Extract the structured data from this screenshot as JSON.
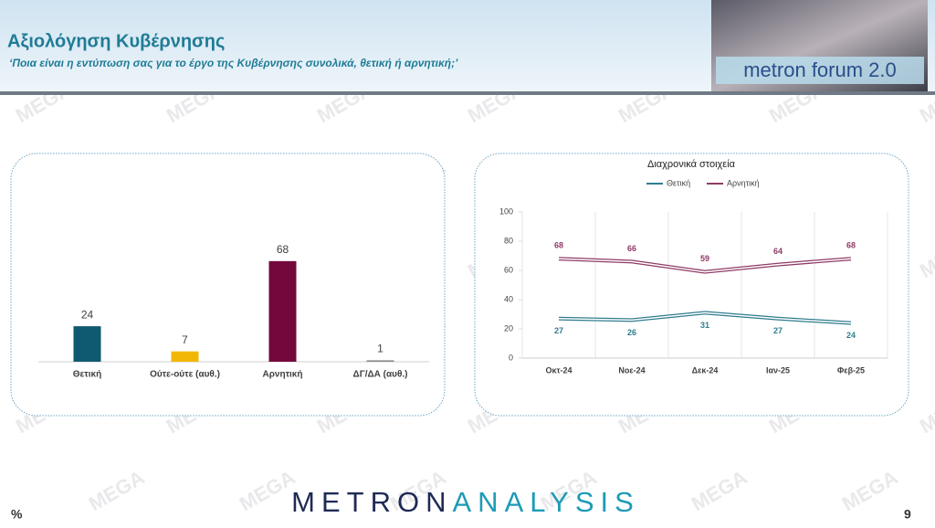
{
  "header": {
    "title": "Αξιολόγηση Κυβέρνησης",
    "subtitle": "‘Ποια είναι η εντύπωση σας για το έργο της Κυβέρνησης συνολικά, θετική ή αρνητική;’",
    "logo_text": "metron forum 2.0"
  },
  "watermark": "MEGA",
  "footer": {
    "unit": "%",
    "brand_first": "METRON",
    "brand_second": "ANALYSIS",
    "page_number": "9"
  },
  "chart_data": [
    {
      "type": "bar",
      "categories": [
        "Θετική",
        "Ούτε-ούτε (αυθ.)",
        "Αρνητική",
        "ΔΓ/ΔΑ (αυθ.)"
      ],
      "values": [
        24,
        7,
        68,
        1
      ],
      "colors": [
        "#0f5a70",
        "#f2b705",
        "#73083c",
        "#8c8c8c"
      ]
    },
    {
      "type": "line",
      "title": "Διαχρονικά στοιχεία",
      "categories": [
        "Οκτ-24",
        "Νοε-24",
        "Δεκ-24",
        "Ιαν-25",
        "Φεβ-25"
      ],
      "series": [
        {
          "name": "Θετική",
          "color": "#2f7d8e",
          "values": [
            27,
            26,
            31,
            27,
            24
          ]
        },
        {
          "name": "Αρνητική",
          "color": "#8e3b66",
          "values": [
            68,
            66,
            59,
            64,
            68
          ]
        }
      ],
      "ylim": [
        0,
        100
      ],
      "yticks": [
        0,
        20,
        40,
        60,
        80,
        100
      ],
      "grid": true,
      "legend": "top"
    }
  ]
}
